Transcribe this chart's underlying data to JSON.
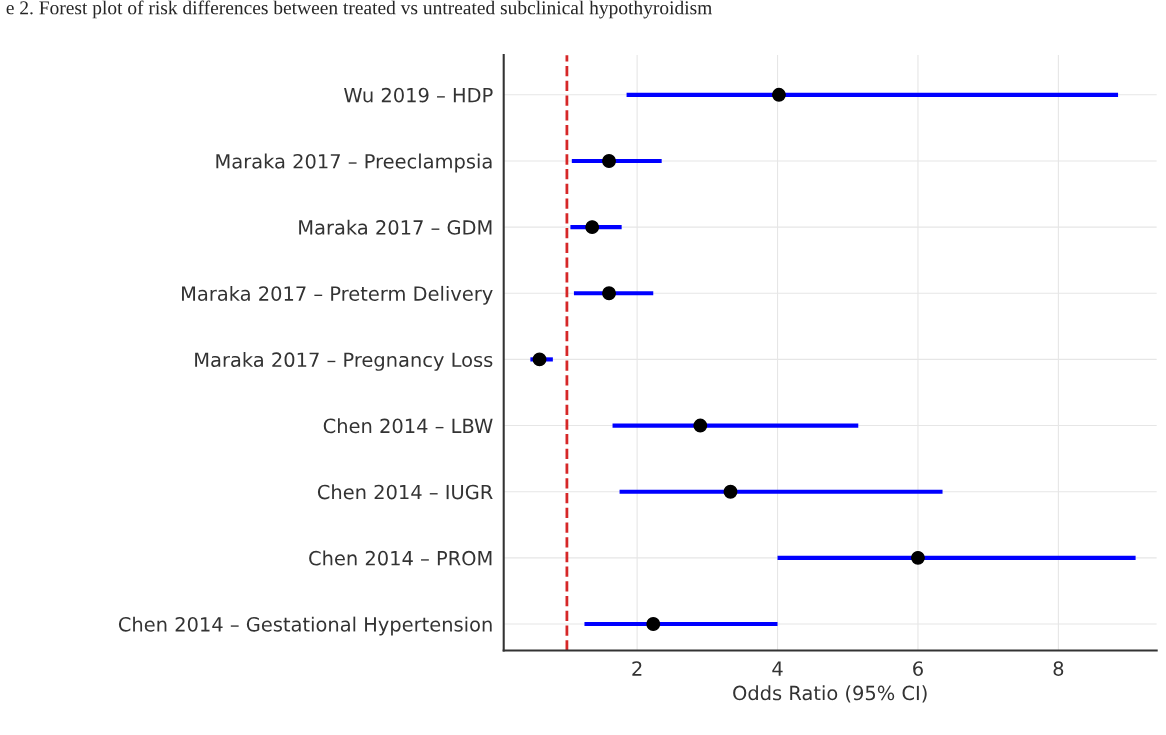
{
  "chart_data": {
    "type": "scatter",
    "orientation": "horizontal",
    "title": "e 2. Forest plot of risk differences between treated vs untreated subclinical hypothyroidism",
    "xlabel": "Odds Ratio (95% CI)",
    "categories": [
      "Wu 2019 – HDP",
      "Maraka 2017 – Preeclampsia",
      "Maraka 2017 – GDM",
      "Maraka 2017 – Preterm Delivery",
      "Maraka 2017 – Pregnancy Loss",
      "Chen 2014 – LBW",
      "Chen 2014 – IUGR",
      "Chen 2014 – PROM",
      "Chen 2014 – Gestational Hypertension"
    ],
    "series": [
      {
        "color": "#0000ff",
        "colors": [
          "#000000",
          "#000000",
          "#000000",
          "#000000",
          "#000000",
          "#000000",
          "#000000",
          "#000000",
          "#000000"
        ],
        "values": [
          4.02,
          1.6,
          1.36,
          1.6,
          0.61,
          2.9,
          3.33,
          6.0,
          2.23
        ],
        "errors": [
          [
            1.85,
            8.85
          ],
          [
            1.07,
            2.35
          ],
          [
            1.05,
            1.78
          ],
          [
            1.1,
            2.23
          ],
          [
            0.48,
            0.8
          ],
          [
            1.65,
            5.15
          ],
          [
            1.75,
            6.35
          ],
          [
            4.0,
            9.1
          ],
          [
            1.25,
            4.0
          ]
        ]
      }
    ],
    "marker": "circle",
    "xlim": [
      0.1,
      9.4
    ],
    "xticks": [
      2,
      4,
      6,
      8
    ],
    "grid": true,
    "ref_lines": [
      {
        "axis": "x",
        "value": 1,
        "color": "#d62728",
        "line_style": "dashed"
      }
    ]
  }
}
